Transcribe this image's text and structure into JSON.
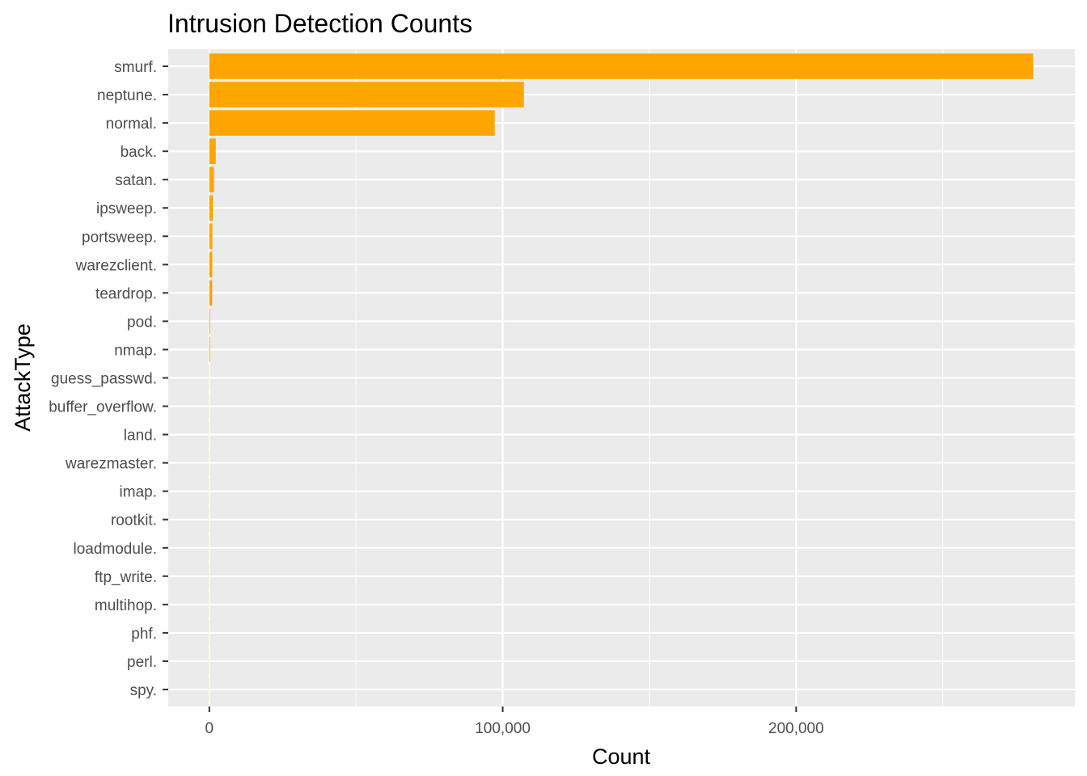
{
  "chart_data": {
    "type": "bar",
    "orientation": "horizontal",
    "title": "Intrusion Detection Counts",
    "xlabel": "Count",
    "ylabel": "AttackType",
    "categories": [
      "smurf.",
      "neptune.",
      "normal.",
      "back.",
      "satan.",
      "ipsweep.",
      "portsweep.",
      "warezclient.",
      "teardrop.",
      "pod.",
      "nmap.",
      "guess_passwd.",
      "buffer_overflow.",
      "land.",
      "warezmaster.",
      "imap.",
      "rootkit.",
      "loadmodule.",
      "ftp_write.",
      "multihop.",
      "phf.",
      "perl.",
      "spy."
    ],
    "values": [
      280790,
      107201,
      97278,
      2203,
      1589,
      1247,
      1040,
      1020,
      979,
      264,
      231,
      53,
      30,
      21,
      20,
      12,
      10,
      9,
      8,
      7,
      4,
      3,
      2
    ],
    "xlim": [
      -14000,
      295000
    ],
    "x_ticks": [
      0,
      100000,
      200000
    ],
    "x_tick_labels": [
      "0",
      "100,000",
      "200,000"
    ],
    "bar_color": "#FFA500",
    "panel_color": "#EBEBEB",
    "grid": true,
    "legend": "none"
  }
}
